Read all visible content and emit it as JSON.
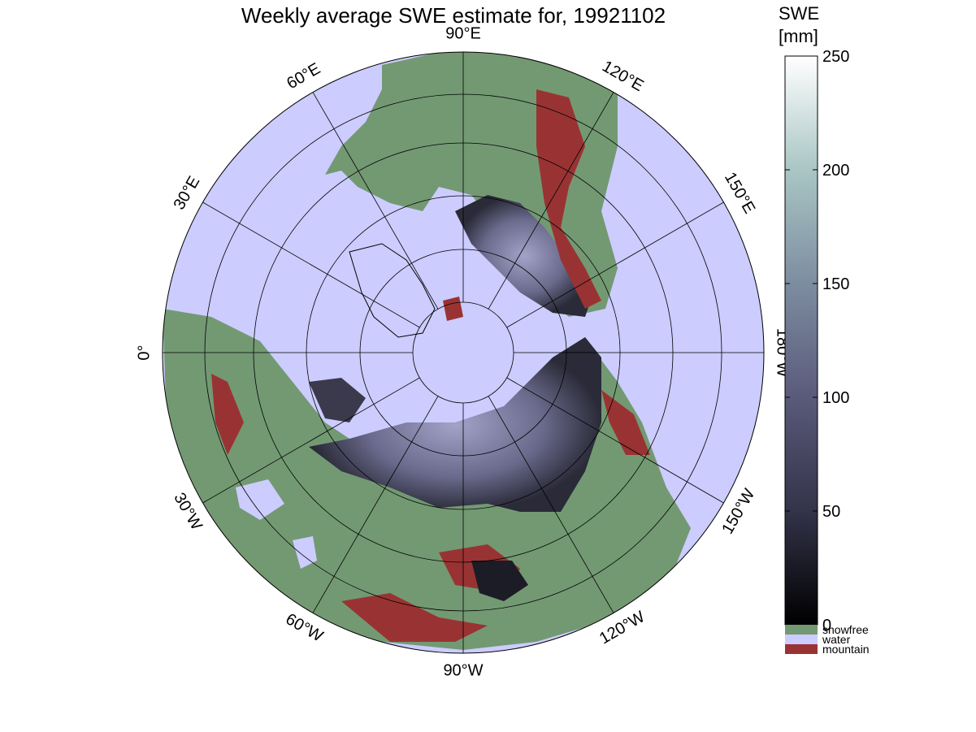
{
  "title": "Weekly average SWE estimate for, 19921102",
  "colors": {
    "water": "#ccccff",
    "snowfree": "#739973",
    "mountain": "#993333",
    "snow_low": "#1c1c26",
    "snow_high": "#9a99c0",
    "grid": "#000000"
  },
  "map": {
    "projection": "north polar stereographic",
    "longitude_labels": [
      {
        "text": "90°W",
        "lon": -90
      },
      {
        "text": "120°W",
        "lon": -120
      },
      {
        "text": "150°W",
        "lon": -150
      },
      {
        "text": "180°W",
        "lon": 180
      },
      {
        "text": "150°E",
        "lon": 150
      },
      {
        "text": "120°E",
        "lon": 120
      },
      {
        "text": "90°E",
        "lon": 90
      },
      {
        "text": "60°E",
        "lon": 60
      },
      {
        "text": "30°E",
        "lon": 30
      },
      {
        "text": "0°",
        "lon": 0
      },
      {
        "text": "30°W",
        "lon": -30
      },
      {
        "text": "60°W",
        "lon": -60
      }
    ]
  },
  "colorbar": {
    "unit_line1": "SWE",
    "unit_line2": "[mm]",
    "ticks": [
      "0",
      "50",
      "100",
      "150",
      "200",
      "250"
    ],
    "range": [
      0,
      250
    ],
    "legend": [
      {
        "label": "snowfree",
        "color": "#739973"
      },
      {
        "label": "water",
        "color": "#ccccff"
      },
      {
        "label": "mountain",
        "color": "#993333"
      }
    ]
  }
}
